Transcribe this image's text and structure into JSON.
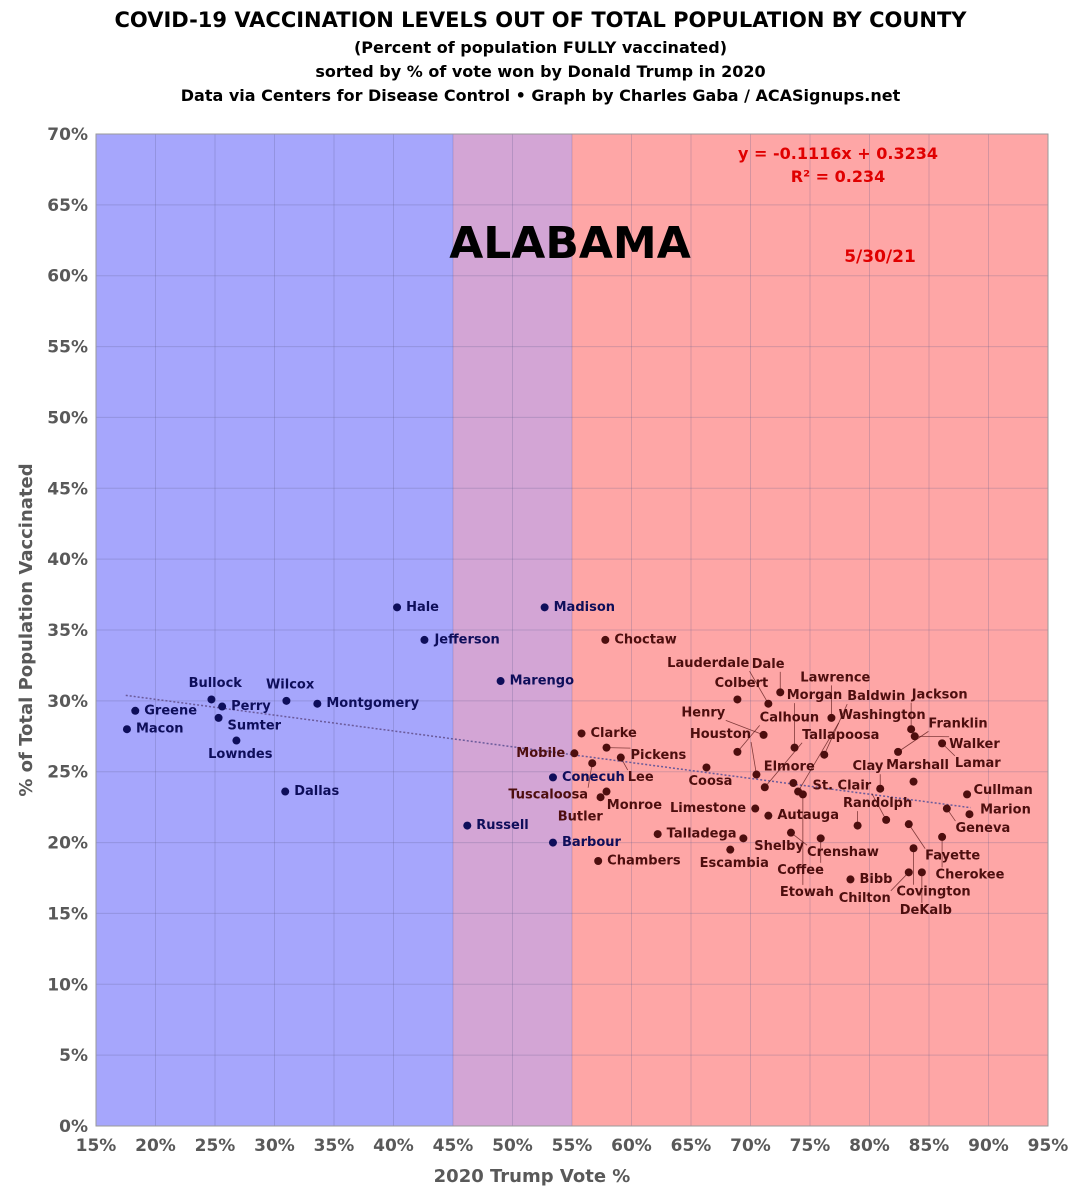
{
  "chart_data": {
    "type": "scatter",
    "title": "COVID-19 VACCINATION LEVELS OUT OF TOTAL POPULATION BY COUNTY",
    "subtitles": [
      "(Percent of population FULLY vaccinated)",
      "sorted by % of vote won by Donald Trump in 2020",
      "Data via Centers for Disease Control • Graph by Charles Gaba / ACASignups.net"
    ],
    "state_label": "ALABAMA",
    "date_label": "5/30/21",
    "trendline": {
      "equation": "y = -0.1116x + 0.3234",
      "r2": "R² = 0.234",
      "slope": -0.1116,
      "intercept": 0.3234
    },
    "xlabel": "2020 Trump Vote %",
    "ylabel": "% of Total Population Vaccinated",
    "xlim": [
      15,
      95
    ],
    "ylim": [
      0,
      70
    ],
    "xticks": [
      "15%",
      "20%",
      "25%",
      "30%",
      "35%",
      "40%",
      "45%",
      "50%",
      "55%",
      "60%",
      "65%",
      "70%",
      "75%",
      "80%",
      "85%",
      "90%",
      "95%"
    ],
    "yticks": [
      "0%",
      "5%",
      "10%",
      "15%",
      "20%",
      "25%",
      "30%",
      "35%",
      "40%",
      "45%",
      "50%",
      "55%",
      "60%",
      "65%",
      "70%"
    ],
    "grid": true,
    "bands": [
      {
        "from": 15,
        "to": 45,
        "color": "#a6a6fc"
      },
      {
        "from": 45,
        "to": 55,
        "color": "#d3a5d5"
      },
      {
        "from": 55,
        "to": 95,
        "color": "#fea6a6"
      }
    ],
    "colors": {
      "blue_point": "#0e0e5a",
      "red_point": "#4d0e0e",
      "equation": "#e00000"
    },
    "points": [
      {
        "name": "Macon",
        "x": 17.6,
        "y": 28.0
      },
      {
        "name": "Greene",
        "x": 18.3,
        "y": 29.3
      },
      {
        "name": "Bullock",
        "x": 24.7,
        "y": 30.1
      },
      {
        "name": "Perry",
        "x": 25.6,
        "y": 29.6
      },
      {
        "name": "Sumter",
        "x": 25.3,
        "y": 28.8
      },
      {
        "name": "Lowndes",
        "x": 26.8,
        "y": 27.2
      },
      {
        "name": "Wilcox",
        "x": 31.0,
        "y": 30.0
      },
      {
        "name": "Montgomery",
        "x": 33.6,
        "y": 29.8
      },
      {
        "name": "Dallas",
        "x": 30.9,
        "y": 23.6
      },
      {
        "name": "Hale",
        "x": 40.3,
        "y": 36.6
      },
      {
        "name": "Jefferson",
        "x": 42.6,
        "y": 34.3
      },
      {
        "name": "Marengo",
        "x": 49.0,
        "y": 31.4
      },
      {
        "name": "Madison",
        "x": 52.7,
        "y": 36.6
      },
      {
        "name": "Russell",
        "x": 46.2,
        "y": 21.2
      },
      {
        "name": "Barbour",
        "x": 53.4,
        "y": 20.0
      },
      {
        "name": "Conecuh",
        "x": 53.4,
        "y": 24.6
      },
      {
        "name": "Choctaw",
        "x": 57.8,
        "y": 34.3
      },
      {
        "name": "Clarke",
        "x": 55.8,
        "y": 27.7
      },
      {
        "name": "Mobile",
        "x": 55.2,
        "y": 26.3
      },
      {
        "name": "Pickens",
        "x": 57.9,
        "y": 26.7
      },
      {
        "name": "Lee",
        "x": 59.1,
        "y": 26.0
      },
      {
        "name": "Tuscaloosa",
        "x": 56.7,
        "y": 25.6
      },
      {
        "name": "Monroe",
        "x": 57.9,
        "y": 23.6
      },
      {
        "name": "Butler",
        "x": 57.4,
        "y": 23.2
      },
      {
        "name": "Chambers",
        "x": 57.2,
        "y": 18.7
      },
      {
        "name": "Talladega",
        "x": 62.2,
        "y": 20.6
      },
      {
        "name": "Coosa",
        "x": 66.3,
        "y": 25.3
      },
      {
        "name": "Escambia",
        "x": 68.3,
        "y": 19.5
      },
      {
        "name": "Shelby",
        "x": 69.4,
        "y": 20.3
      },
      {
        "name": "Limestone",
        "x": 70.4,
        "y": 22.4
      },
      {
        "name": "Autauga",
        "x": 71.5,
        "y": 21.9
      },
      {
        "name": "Crenshaw",
        "x": 73.4,
        "y": 20.7
      },
      {
        "name": "Coffee",
        "x": 75.9,
        "y": 20.3
      },
      {
        "name": "Bibb",
        "x": 78.4,
        "y": 17.4
      },
      {
        "name": "Randolph",
        "x": 79.0,
        "y": 21.2
      },
      {
        "name": "St. Clair",
        "x": 81.4,
        "y": 21.6
      },
      {
        "name": "Fayette",
        "x": 83.3,
        "y": 21.3
      },
      {
        "name": "Geneva",
        "x": 86.5,
        "y": 22.4
      },
      {
        "name": "Marion",
        "x": 88.4,
        "y": 22.0
      },
      {
        "name": "Cherokee",
        "x": 86.1,
        "y": 20.4
      },
      {
        "name": "Covington",
        "x": 83.7,
        "y": 19.6
      },
      {
        "name": "Chilton",
        "x": 83.3,
        "y": 17.9
      },
      {
        "name": "DeKalb",
        "x": 84.4,
        "y": 17.9
      },
      {
        "name": "Cullman",
        "x": 88.2,
        "y": 23.4
      },
      {
        "name": "Marshall",
        "x": 83.7,
        "y": 24.3
      },
      {
        "name": "Clay",
        "x": 80.9,
        "y": 23.8
      },
      {
        "name": "Houston",
        "x": 70.5,
        "y": 24.8
      },
      {
        "name": "Elmore",
        "x": 73.6,
        "y": 24.2
      },
      {
        "name": "Tallapoosa",
        "x": 71.2,
        "y": 23.9
      },
      {
        "name": "Washington",
        "x": 74.0,
        "y": 23.6
      },
      {
        "name": "Etowah",
        "x": 74.4,
        "y": 23.4
      },
      {
        "name": "Calhoun",
        "x": 68.9,
        "y": 26.4
      },
      {
        "name": "Henry",
        "x": 71.1,
        "y": 27.6
      },
      {
        "name": "Morgan",
        "x": 73.7,
        "y": 26.7
      },
      {
        "name": "Baldwin",
        "x": 76.2,
        "y": 26.2
      },
      {
        "name": "Franklin",
        "x": 82.4,
        "y": 26.4
      },
      {
        "name": "Lawrence",
        "x": 76.8,
        "y": 28.8
      },
      {
        "name": "Jackson",
        "x": 83.5,
        "y": 28.0
      },
      {
        "name": "Walker",
        "x": 83.8,
        "y": 27.5
      },
      {
        "name": "Lamar",
        "x": 86.1,
        "y": 27.0
      },
      {
        "name": "Colbert",
        "x": 68.9,
        "y": 30.1
      },
      {
        "name": "Dale",
        "x": 72.5,
        "y": 30.6
      },
      {
        "name": "Lauderdale",
        "x": 71.5,
        "y": 29.8
      }
    ]
  }
}
